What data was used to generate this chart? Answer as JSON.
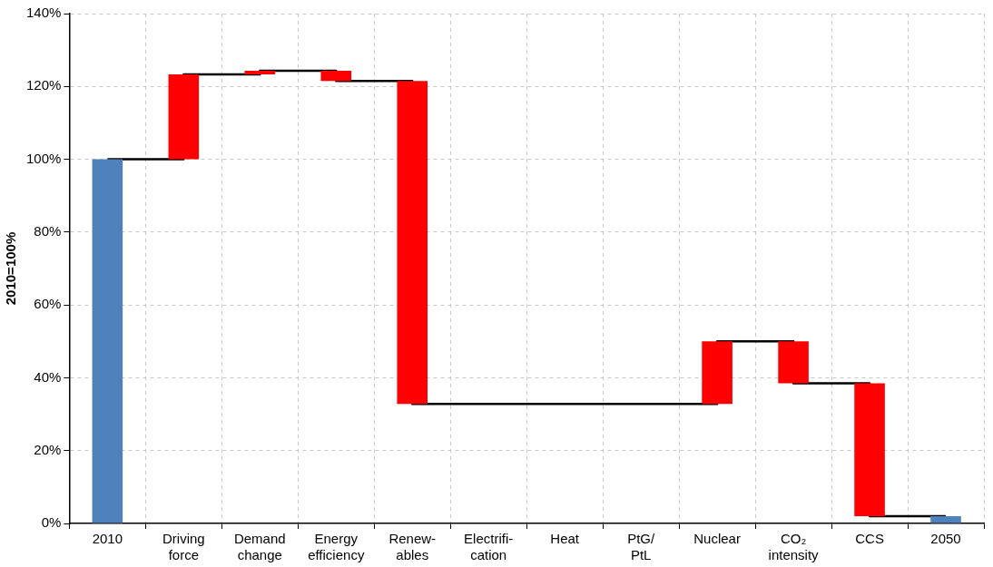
{
  "chart_data": {
    "type": "bar",
    "ylabel": "2010=100%",
    "categories": [
      "2010",
      "Driving force",
      "Demand change",
      "Energy efficiency",
      "Renew-ables",
      "Electrifi-cation",
      "Heat",
      "PtG/PtL",
      "Nuclear",
      "CO₂ intensity",
      "CCS",
      "2050"
    ],
    "series": [
      {
        "values": [
          100,
          23.3,
          1,
          -2.8,
          -88.7,
          null,
          null,
          null,
          17.2,
          -11.5,
          -36.5,
          2
        ],
        "base": [
          0,
          100,
          123.3,
          124.3,
          121.5,
          null,
          null,
          null,
          32.8,
          50,
          38.5,
          0
        ],
        "colors": [
          "#4f81bd",
          "#ff0000",
          "#ff0000",
          "#ff0000",
          "#ff0000",
          "#ff0000",
          "#ff0000",
          "#ff0000",
          "#ff0000",
          "#ff0000",
          "#ff0000",
          "#4f81bd"
        ]
      },
      {
        "type": "step",
        "color": "#000000",
        "values": [
          100,
          123.3,
          124.3,
          121.5,
          32.8,
          32.8,
          32.8,
          32.8,
          50,
          38.5,
          2,
          2
        ]
      }
    ],
    "marker": "none",
    "ylim": [
      0,
      140
    ],
    "yticks": [
      {
        "value": 0,
        "label": "0%"
      },
      {
        "value": 20,
        "label": "20%"
      },
      {
        "value": 40,
        "label": "40%"
      },
      {
        "value": 60,
        "label": "60%"
      },
      {
        "value": 80,
        "label": "80%"
      },
      {
        "value": 100,
        "label": "100%"
      },
      {
        "value": 120,
        "label": "120%"
      },
      {
        "value": 140,
        "label": "140%"
      }
    ],
    "grid": true
  }
}
